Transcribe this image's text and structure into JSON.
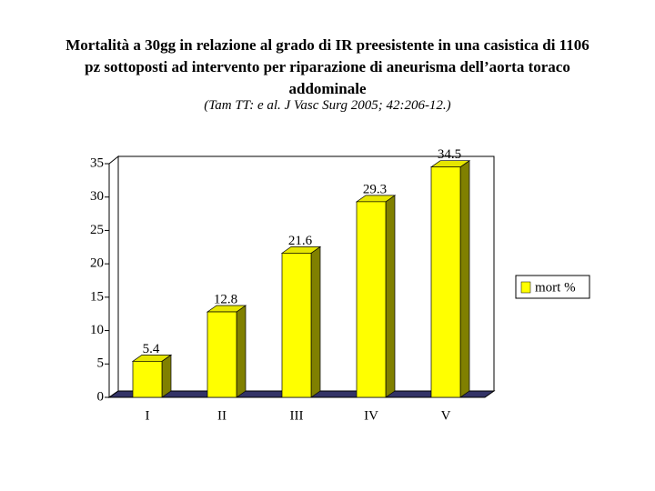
{
  "chart_data": {
    "type": "bar3d",
    "title": "Mortalità a 30gg  in relazione al grado di IR preesistente in una casistica di 1106 pz sottoposti ad intervento per riparazione di aneurisma dell’aorta toraco addominale",
    "subtitle": "(Tam TT: e al. J Vasc Surg 2005; 42:206-12.)",
    "categories": [
      "I",
      "II",
      "III",
      "IV",
      "V"
    ],
    "series": [
      {
        "name": "mort %",
        "color": "#ffff00",
        "values": [
          5.4,
          12.8,
          21.6,
          29.3,
          34.5
        ]
      }
    ],
    "ylim": [
      0,
      35
    ],
    "yticks": [
      0,
      5,
      10,
      15,
      20,
      25,
      30,
      35
    ],
    "legend": "right",
    "grid": false
  }
}
